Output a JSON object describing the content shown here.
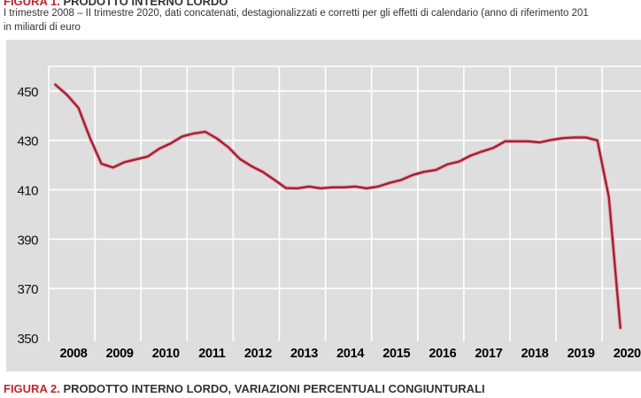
{
  "figure1": {
    "label": "FIGURA 1.",
    "title": "PRODOTTO INTERNO LORDO",
    "subtitle": "I trimestre 2008 – II trimestre 2020, dati concatenati, destagionalizzati e corretti per gli effetti di calendario (anno di riferimento 201",
    "unit": "in miliardi di euro"
  },
  "figure2": {
    "label": "FIGURA 2.",
    "title": "PRODOTTO INTERNO LORDO, VARIAZIONI PERCENTUALI CONGIUNTURALI"
  },
  "chart_data": {
    "type": "line",
    "title": "PRODOTTO INTERNO LORDO",
    "xlabel": "",
    "ylabel": "in miliardi di euro",
    "ylim": [
      350,
      460
    ],
    "yticks": [
      450,
      430,
      410,
      390,
      370,
      350
    ],
    "grid": true,
    "legend": "none",
    "categories": [
      "2008",
      "2009",
      "2010",
      "2011",
      "2012",
      "2013",
      "2014",
      "2015",
      "2016",
      "2017",
      "2018",
      "2019",
      "2020"
    ],
    "x_unit": "quarter",
    "series": [
      {
        "name": "PIL",
        "color": "#9b2335",
        "x": [
          "2008 Q1",
          "2008 Q2",
          "2008 Q3",
          "2008 Q4",
          "2009 Q1",
          "2009 Q2",
          "2009 Q3",
          "2009 Q4",
          "2010 Q1",
          "2010 Q2",
          "2010 Q3",
          "2010 Q4",
          "2011 Q1",
          "2011 Q2",
          "2011 Q3",
          "2011 Q4",
          "2012 Q1",
          "2012 Q2",
          "2012 Q3",
          "2012 Q4",
          "2013 Q1",
          "2013 Q2",
          "2013 Q3",
          "2013 Q4",
          "2014 Q1",
          "2014 Q2",
          "2014 Q3",
          "2014 Q4",
          "2015 Q1",
          "2015 Q2",
          "2015 Q3",
          "2015 Q4",
          "2016 Q1",
          "2016 Q2",
          "2016 Q3",
          "2016 Q4",
          "2017 Q1",
          "2017 Q2",
          "2017 Q3",
          "2017 Q4",
          "2018 Q1",
          "2018 Q2",
          "2018 Q3",
          "2018 Q4",
          "2019 Q1",
          "2019 Q2",
          "2019 Q3",
          "2019 Q4",
          "2020 Q1",
          "2020 Q2"
        ],
        "values": [
          452.6,
          448.5,
          443.2,
          431.0,
          420.5,
          419.0,
          421.2,
          422.3,
          423.4,
          426.6,
          428.8,
          431.6,
          432.8,
          433.5,
          430.8,
          427.2,
          422.5,
          419.6,
          417.2,
          414.0,
          410.7,
          410.6,
          411.3,
          410.6,
          411.0,
          411.0,
          411.3,
          410.6,
          411.3,
          412.8,
          414.0,
          416.0,
          417.3,
          418.0,
          420.3,
          421.4,
          423.8,
          425.5,
          427.0,
          429.6,
          429.6,
          429.6,
          429.2,
          430.2,
          430.9,
          431.2,
          431.2,
          430.0,
          407.0,
          354.0
        ]
      }
    ]
  }
}
